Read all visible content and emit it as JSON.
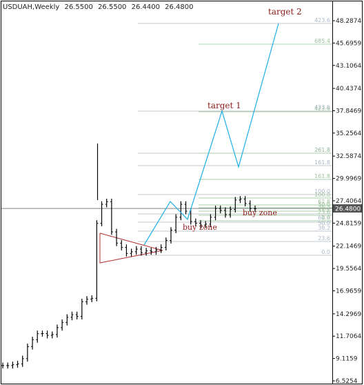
{
  "header": {
    "symbol": "USDUAH,Weekly",
    "open": "26.5500",
    "high": "26.5500",
    "low": "26.4400",
    "close": "26.4800"
  },
  "price_axis": {
    "labels": [
      "48.2874",
      "45.6959",
      "43.1064",
      "40.4374",
      "37.8469",
      "35.2564",
      "32.5874",
      "29.9969",
      "27.4064",
      "24.8159",
      "22.1469",
      "19.5564",
      "16.9659",
      "14.2969",
      "11.7064",
      "9.1159",
      "6.5254"
    ],
    "current_price": "26.4800"
  },
  "annotations": {
    "target_1": "target 1",
    "target_2": "target 2",
    "buy_zone_1": "buy zone",
    "buy_zone_2": "buy zone"
  },
  "fib_set_1": {
    "labels": [
      "423.6",
      "261.8",
      "161.8",
      "100.0",
      "61.8",
      "50.0",
      "38.2",
      "23.6",
      "0.0"
    ],
    "color": "#a9b6c7"
  },
  "fib_set_2": {
    "labels": [
      "685.4",
      "423.6",
      "261.8",
      "161.8",
      "100.0",
      "61.8",
      "50.0",
      "38.2",
      "23.6",
      "0.0"
    ],
    "color": "#9cc09c"
  },
  "colors": {
    "candles": "#000000",
    "projection": "#2ab4e6",
    "triangle": "#b03030",
    "annotation_text": "#8b1a1a",
    "current_price_bg": "#555555"
  },
  "chart_data": {
    "type": "line",
    "title": "USDUAH,Weekly",
    "y_scale": "linear",
    "ylim": [
      6.5254,
      48.2874
    ],
    "candles_close_approx": [
      8.3,
      8.3,
      8.4,
      8.5,
      9.1,
      10.5,
      11.3,
      12.0,
      12.0,
      11.8,
      11.9,
      12.7,
      13.3,
      13.9,
      14.2,
      14.0,
      15.7,
      16.0,
      16.1,
      24.8,
      27.0,
      27.3,
      23.8,
      22.5,
      22.0,
      21.3,
      21.5,
      21.8,
      21.4,
      21.6,
      21.5,
      21.7,
      22.0,
      22.8,
      24.0,
      25.5,
      27.0,
      26.2,
      25.0,
      24.8,
      24.6,
      24.7,
      25.5,
      26.5,
      26.3,
      25.8,
      26.4,
      27.5,
      27.6,
      27.1,
      26.5,
      26.48
    ],
    "projection_path": [
      {
        "step": 0,
        "price": 24.9
      },
      {
        "step": 1,
        "price": 37.7
      },
      {
        "step": 2,
        "price": 31.0
      },
      {
        "step": 3,
        "price": 47.8
      }
    ],
    "series": [
      {
        "name": "target 1",
        "values": [
          37.7
        ]
      },
      {
        "name": "target 2",
        "values": [
          47.8
        ]
      }
    ]
  }
}
